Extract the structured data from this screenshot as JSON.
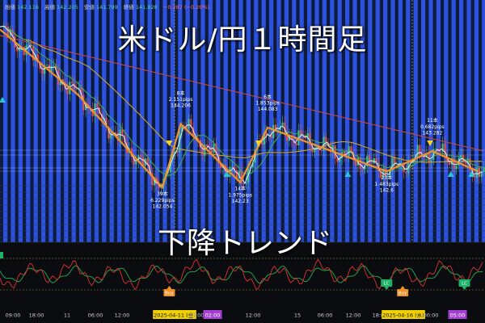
{
  "header": {
    "open_label": "始値",
    "open": "142.116",
    "high_label": "高値",
    "high": "142.205",
    "low_label": "安値",
    "low": "141.799",
    "close_label": "終値",
    "close": "141.828",
    "change": "−0.287 (−0.20%)"
  },
  "title": "米ドル/円１時間足",
  "subtitle": "下降トレンド",
  "colors": {
    "stripe": "#2f55e8",
    "price_line": "#e8ecf0",
    "zigzag": "#f0922a",
    "ma_long": "#c24848",
    "ma_mid": "#c8a030",
    "ma_short": "#3fae54",
    "buy": "#f0922a",
    "lc": "#1fb36a",
    "date_badge": "#f0d000",
    "time_badge": "#a53fd3",
    "osc_red": "#e03030",
    "osc_green": "#20b050"
  },
  "chart_data": {
    "type": "line",
    "zigzag": [
      {
        "x": 0,
        "y": 147.4
      },
      {
        "x": 34,
        "y": 145.2
      },
      {
        "x": 71,
        "y": 142.054,
        "count": "39本",
        "pips": "6.229pips",
        "price": "142.054"
      },
      {
        "x": 79,
        "y": 144.206,
        "count": "8本",
        "pips": "2.151pips",
        "price": "144.206"
      },
      {
        "x": 105,
        "y": 142.23,
        "count": "14本",
        "pips": "1.975pips",
        "price": "142.23"
      },
      {
        "x": 117,
        "y": 144.083,
        "count": "6本",
        "pips": "1.853pips",
        "price": "144.083"
      },
      {
        "x": 169,
        "y": 142.6,
        "count": "23本",
        "pips": "1.483pips",
        "price": "142.6"
      },
      {
        "x": 189,
        "y": 143.282,
        "count": "11本",
        "pips": "0.682pips",
        "price": "143.282"
      },
      {
        "x": 209,
        "y": 142.6
      }
    ],
    "sell_markers": [
      74,
      113,
      188
    ],
    "buy_markers": [
      0,
      98,
      151,
      196,
      205
    ],
    "x_ticks": [
      "09:00",
      "18:00",
      "11",
      "06:00",
      "12:00",
      "2025-04-11 (金)",
      "23:00",
      "02:00",
      "12:00",
      "15",
      "06:00",
      "12:00",
      "18:00",
      "2025-04-16 (水)",
      "00:00",
      "05:00"
    ],
    "osc_badges": [
      {
        "label": "Buy",
        "x": 74
      },
      {
        "label": "LC",
        "x": 169
      },
      {
        "label": "Buy",
        "x": 176
      },
      {
        "label": "LC",
        "x": 203
      }
    ]
  }
}
